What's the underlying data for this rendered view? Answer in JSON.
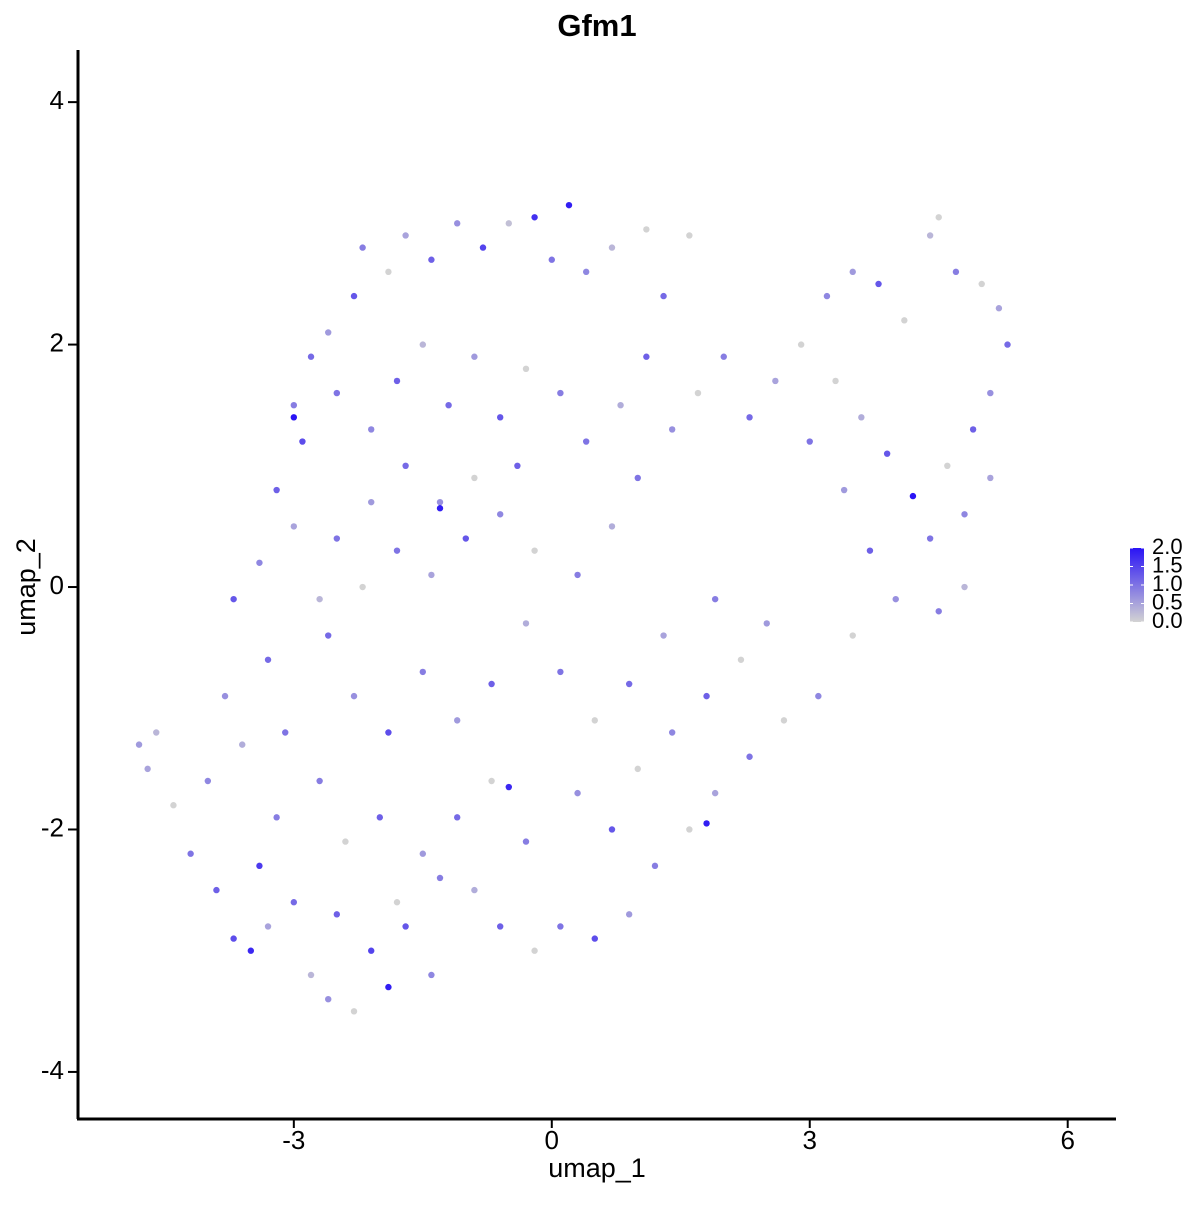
{
  "chart_data": {
    "type": "scatter",
    "title": "Gfm1",
    "x_label": "umap_1",
    "y_label": "umap_2",
    "xlim": [
      -5.51,
      6.55
    ],
    "ylim": [
      -4.38,
      4.43
    ],
    "xticks": [
      -3,
      0,
      3,
      6
    ],
    "yticks": [
      -4,
      -2,
      0,
      2,
      4
    ],
    "low_color": "#d3d3d3",
    "high_color": "#2a14f5",
    "colorbar_lim": [
      0,
      2
    ],
    "colorbar_ticks": [
      {
        "value": 0,
        "label": "0.0"
      },
      {
        "value": 0.5,
        "label": "0.5"
      },
      {
        "value": 1,
        "label": "1.0"
      },
      {
        "value": 1.5,
        "label": "1.5"
      },
      {
        "value": 2,
        "label": "2.0"
      }
    ],
    "x": [
      -4.8,
      -4.7,
      -4.6,
      -4.4,
      -4.2,
      -4.0,
      -3.9,
      -3.7,
      -3.5,
      -3.4,
      -3.2,
      -3.0,
      -2.8,
      -2.6,
      -2.3,
      -2.1,
      -1.9,
      -1.7,
      -1.4,
      -1.5,
      -2.0,
      -2.4,
      -2.7,
      -3.1,
      -3.6,
      -3.8,
      -3.3,
      -3.7,
      -3.4,
      -3.0,
      -3.2,
      -2.9,
      -3.0,
      -2.8,
      -2.6,
      -2.3,
      -2.2,
      -1.9,
      -1.7,
      -1.4,
      -1.1,
      -0.8,
      -0.5,
      -0.2,
      0.0,
      0.2,
      0.4,
      0.7,
      1.1,
      1.3,
      1.6,
      -2.5,
      -2.1,
      -1.8,
      -1.5,
      -1.2,
      -0.9,
      -0.6,
      -0.3,
      0.1,
      0.4,
      0.8,
      1.1,
      1.4,
      1.7,
      2.0,
      2.3,
      2.6,
      2.9,
      3.2,
      3.5,
      3.8,
      4.1,
      4.4,
      4.5,
      4.7,
      5.0,
      5.2,
      5.3,
      5.1,
      4.9,
      4.6,
      4.8,
      5.1,
      4.4,
      4.2,
      3.9,
      3.6,
      3.3,
      3.0,
      3.4,
      3.7,
      4.0,
      4.5,
      4.8,
      3.5,
      3.1,
      2.7,
      2.3,
      1.9,
      1.6,
      1.2,
      0.9,
      0.5,
      0.1,
      -0.2,
      -0.6,
      -0.9,
      -1.1,
      -0.7,
      -0.3,
      0.3,
      0.7,
      1.0,
      1.4,
      1.8,
      2.2,
      2.5,
      1.9,
      1.3,
      0.9,
      0.5,
      0.1,
      -0.3,
      -0.7,
      -1.1,
      -1.5,
      -1.9,
      -2.3,
      -2.6,
      -2.2,
      -1.8,
      -1.4,
      -1.0,
      -0.6,
      -0.2,
      0.3,
      0.7,
      1.0,
      -0.4,
      -0.9,
      -1.3,
      -1.7,
      -2.1,
      -2.5,
      -2.7,
      -1.3,
      -1.8,
      -2.5,
      -3.3,
      1.8,
      -0.5,
      -3.0,
      -1.3
    ],
    "values": [
      -1.3,
      -1.5,
      -1.2,
      -1.8,
      -2.2,
      -1.6,
      -2.5,
      -2.9,
      -3.0,
      -2.3,
      -1.9,
      -2.6,
      -3.2,
      -3.4,
      -3.5,
      -3.0,
      -3.3,
      -2.8,
      -3.2,
      -2.2,
      -1.9,
      -2.1,
      -1.6,
      -1.2,
      -1.3,
      -0.9,
      -0.6,
      -0.1,
      0.2,
      0.5,
      0.8,
      1.2,
      1.5,
      1.9,
      2.1,
      2.4,
      2.8,
      2.6,
      2.9,
      2.7,
      3.0,
      2.8,
      3.0,
      3.05,
      2.7,
      3.15,
      2.6,
      2.8,
      2.95,
      2.4,
      2.9,
      1.6,
      1.3,
      1.7,
      2.0,
      1.5,
      1.9,
      1.4,
      1.8,
      1.6,
      1.2,
      1.5,
      1.9,
      1.3,
      1.6,
      1.9,
      1.4,
      1.7,
      2.0,
      2.4,
      2.6,
      2.5,
      2.2,
      2.9,
      3.05,
      2.6,
      2.5,
      2.3,
      2.0,
      1.6,
      1.3,
      1.0,
      0.6,
      0.9,
      0.4,
      0.75,
      1.1,
      1.4,
      1.7,
      1.2,
      0.8,
      0.3,
      -0.1,
      -0.2,
      0.0,
      -0.4,
      -0.9,
      -1.1,
      -1.4,
      -1.7,
      -2.0,
      -2.3,
      -2.7,
      -2.9,
      -2.8,
      -3.0,
      -2.8,
      -2.5,
      -1.9,
      -1.6,
      -2.1,
      -1.7,
      -2.0,
      -1.5,
      -1.2,
      -0.9,
      -0.6,
      -0.3,
      -0.1,
      -0.4,
      -0.8,
      -1.1,
      -0.7,
      -0.3,
      -0.8,
      -1.1,
      -0.7,
      -1.2,
      -0.9,
      -0.4,
      0.0,
      0.3,
      0.1,
      0.4,
      0.6,
      0.3,
      0.1,
      0.5,
      0.9,
      1.0,
      0.9,
      0.7,
      1.0,
      0.7,
      0.4,
      -0.1,
      -2.4,
      -2.6,
      -2.7,
      -2.8,
      -1.95,
      -1.65,
      1.4,
      0.65
    ],
    "expression": [
      0.6,
      0.5,
      0.3,
      0,
      1.0,
      0.8,
      1.2,
      1.4,
      1.8,
      1.6,
      0.9,
      1.1,
      0.3,
      0.7,
      0,
      1.5,
      1.9,
      1.3,
      0.8,
      0.6,
      1.2,
      0,
      0.9,
      1.0,
      0.4,
      0.7,
      1.1,
      1.3,
      0.8,
      0.5,
      1.2,
      1.4,
      0.9,
      1.1,
      0.6,
      1.3,
      0.9,
      0,
      0.5,
      1.2,
      0.7,
      1.5,
      0.2,
      1.7,
      1.0,
      1.9,
      0.8,
      0.3,
      0,
      1.1,
      0,
      1.0,
      0.8,
      1.2,
      0.3,
      1.1,
      0.6,
      1.3,
      0,
      0.9,
      1.0,
      0.4,
      1.2,
      0.7,
      0,
      0.9,
      1.1,
      0.5,
      0,
      0.8,
      0.6,
      1.3,
      0,
      0.3,
      0,
      0.9,
      0,
      0.5,
      1.1,
      0.7,
      1.2,
      0,
      0.8,
      0.5,
      1.0,
      2.0,
      1.3,
      0.4,
      0,
      1.0,
      0.6,
      1.2,
      0.7,
      0.9,
      0.3,
      0,
      0.8,
      0,
      1.0,
      0.5,
      0,
      0.9,
      0.6,
      1.4,
      1.0,
      0,
      1.2,
      0.4,
      1.1,
      0,
      0.9,
      0.7,
      1.3,
      0,
      0.8,
      1.2,
      0,
      0.6,
      0.9,
      0.5,
      1.1,
      0,
      1.0,
      0.4,
      1.2,
      0.6,
      0.9,
      1.4,
      0.7,
      1.1,
      0,
      1.0,
      0.5,
      1.3,
      0.8,
      0,
      0.9,
      0.4,
      1.0,
      1.2,
      0,
      0.7,
      1.1,
      0.6,
      1.0,
      0.3,
      0.9,
      0,
      1.2,
      0.5,
      1.9,
      1.8,
      2.0,
      1.9
    ]
  }
}
